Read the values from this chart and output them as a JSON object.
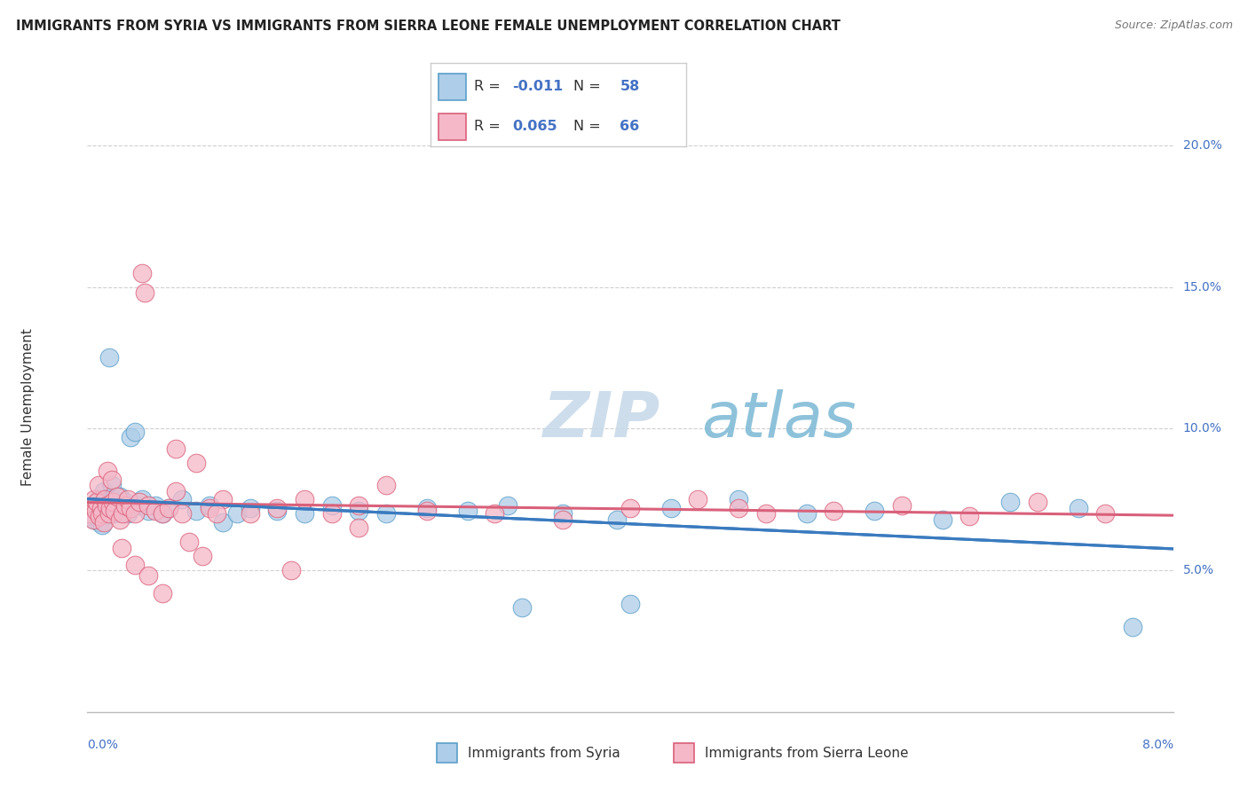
{
  "title": "IMMIGRANTS FROM SYRIA VS IMMIGRANTS FROM SIERRA LEONE FEMALE UNEMPLOYMENT CORRELATION CHART",
  "source": "Source: ZipAtlas.com",
  "ylabel": "Female Unemployment",
  "xlim": [
    0.0,
    8.0
  ],
  "ylim": [
    0.0,
    21.5
  ],
  "yticks": [
    5.0,
    10.0,
    15.0,
    20.0
  ],
  "ytick_labels": [
    "5.0%",
    "10.0%",
    "15.0%",
    "20.0%"
  ],
  "xtick_left": "0.0%",
  "xtick_right": "8.0%",
  "series": [
    {
      "name": "Immigrants from Syria",
      "color": "#aecde8",
      "edge_color": "#5a9fc9",
      "R": -0.011,
      "N": 58,
      "trend_color": "#3a7bbf",
      "trend_dash": false,
      "x": [
        0.02,
        0.03,
        0.04,
        0.05,
        0.06,
        0.07,
        0.08,
        0.09,
        0.1,
        0.11,
        0.12,
        0.13,
        0.14,
        0.15,
        0.16,
        0.17,
        0.18,
        0.19,
        0.2,
        0.22,
        0.24,
        0.26,
        0.28,
        0.3,
        0.32,
        0.35,
        0.38,
        0.4,
        0.45,
        0.5,
        0.55,
        0.6,
        0.7,
        0.8,
        0.9,
        1.0,
        1.1,
        1.2,
        1.4,
        1.6,
        1.8,
        2.0,
        2.2,
        2.5,
        2.8,
        3.1,
        3.5,
        3.9,
        4.3,
        4.8,
        5.3,
        5.8,
        6.3,
        6.8,
        7.3,
        7.7,
        3.2,
        4.0
      ],
      "y": [
        7.2,
        6.9,
        7.0,
        6.8,
        7.3,
        7.1,
        7.5,
        6.7,
        7.4,
        6.6,
        7.8,
        7.0,
        7.2,
        7.1,
        12.5,
        7.3,
        8.0,
        7.5,
        7.0,
        7.2,
        7.6,
        7.1,
        7.4,
        7.0,
        9.7,
        9.9,
        7.3,
        7.5,
        7.1,
        7.3,
        7.0,
        7.2,
        7.5,
        7.1,
        7.3,
        6.7,
        7.0,
        7.2,
        7.1,
        7.0,
        7.3,
        7.1,
        7.0,
        7.2,
        7.1,
        7.3,
        7.0,
        6.8,
        7.2,
        7.5,
        7.0,
        7.1,
        6.8,
        7.4,
        7.2,
        3.0,
        3.7,
        3.8
      ]
    },
    {
      "name": "Immigrants from Sierra Leone",
      "color": "#f5b8c8",
      "edge_color": "#d9607a",
      "R": 0.065,
      "N": 66,
      "trend_color": "#d9607a",
      "trend_dash": false,
      "x": [
        0.02,
        0.03,
        0.04,
        0.05,
        0.06,
        0.07,
        0.08,
        0.09,
        0.1,
        0.11,
        0.12,
        0.13,
        0.14,
        0.15,
        0.16,
        0.17,
        0.18,
        0.19,
        0.2,
        0.22,
        0.24,
        0.26,
        0.28,
        0.3,
        0.32,
        0.35,
        0.38,
        0.4,
        0.42,
        0.45,
        0.5,
        0.55,
        0.6,
        0.65,
        0.7,
        0.8,
        0.9,
        1.0,
        1.2,
        1.4,
        1.6,
        1.8,
        2.0,
        2.5,
        3.0,
        3.5,
        4.0,
        4.5,
        5.0,
        5.5,
        6.0,
        6.5,
        7.0,
        7.5,
        0.25,
        0.35,
        0.45,
        0.55,
        0.65,
        0.75,
        0.85,
        0.95,
        1.5,
        2.0,
        4.8,
        2.2
      ],
      "y": [
        7.0,
        7.3,
        6.8,
        7.5,
        7.1,
        7.4,
        8.0,
        6.9,
        7.2,
        7.0,
        6.7,
        7.5,
        7.3,
        8.5,
        7.0,
        7.2,
        8.2,
        7.4,
        7.1,
        7.6,
        6.8,
        7.0,
        7.3,
        7.5,
        7.2,
        7.0,
        7.4,
        15.5,
        14.8,
        7.3,
        7.1,
        7.0,
        7.2,
        9.3,
        7.0,
        8.8,
        7.2,
        7.5,
        7.0,
        7.2,
        7.5,
        7.0,
        7.3,
        7.1,
        7.0,
        6.8,
        7.2,
        7.5,
        7.0,
        7.1,
        7.3,
        6.9,
        7.4,
        7.0,
        5.8,
        5.2,
        4.8,
        4.2,
        7.8,
        6.0,
        5.5,
        7.0,
        5.0,
        6.5,
        7.2,
        8.0
      ]
    }
  ],
  "watermark_zip": "ZIP",
  "watermark_atlas": "atlas",
  "watermark_color_zip": "#c5d8e8",
  "watermark_color_atlas": "#7ab8d4",
  "background_color": "#ffffff",
  "grid_color": "#d0d0d0",
  "title_fontsize": 10.5,
  "axis_label_fontsize": 11
}
